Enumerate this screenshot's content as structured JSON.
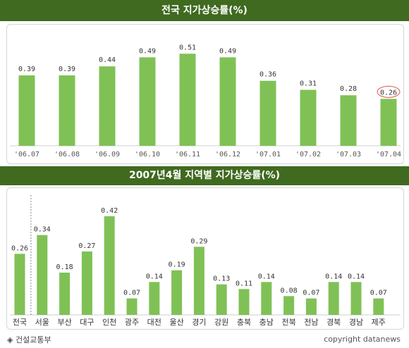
{
  "chart_data": [
    {
      "type": "bar",
      "title": "전국 지가상승률(%)",
      "categories": [
        "'06.07",
        "'06.08",
        "'06.09",
        "'06.10",
        "'06.11",
        "'06.12",
        "'07.01",
        "'07.02",
        "'07.03",
        "'07.04"
      ],
      "values": [
        0.39,
        0.39,
        0.44,
        0.49,
        0.51,
        0.49,
        0.36,
        0.31,
        0.28,
        0.26
      ],
      "value_labels": [
        "0.39",
        "0.39",
        "0.44",
        "0.49",
        "0.51",
        "0.49",
        "0.36",
        "0.31",
        "0.28",
        "0.26"
      ],
      "highlight_index": 9,
      "ylim": [
        0,
        0.55
      ],
      "bar_color": "#80c156",
      "highlight_color": "#e05555"
    },
    {
      "type": "bar",
      "title": "2007년4월 지역별 지가상승률(%)",
      "categories": [
        "전국",
        "서울",
        "부산",
        "대구",
        "인천",
        "광주",
        "대전",
        "울산",
        "경기",
        "강원",
        "충북",
        "충남",
        "전북",
        "전남",
        "경북",
        "경남",
        "제주"
      ],
      "values": [
        0.26,
        0.34,
        0.18,
        0.27,
        0.42,
        0.07,
        0.14,
        0.19,
        0.29,
        0.13,
        0.11,
        0.14,
        0.08,
        0.07,
        0.14,
        0.14,
        0.07
      ],
      "value_labels": [
        "0.26",
        "0.34",
        "0.18",
        "0.27",
        "0.42",
        "0.07",
        "0.14",
        "0.19",
        "0.29",
        "0.13",
        "0.11",
        "0.14",
        "0.08",
        "0.07",
        "0.14",
        "0.14",
        "0.07"
      ],
      "ylim": [
        0,
        0.45
      ],
      "separator_after_index": 0,
      "bar_color": "#80c156"
    }
  ],
  "footer": {
    "source_marker": "◈",
    "source": "건설교통부",
    "copyright": "copyright datanews"
  }
}
